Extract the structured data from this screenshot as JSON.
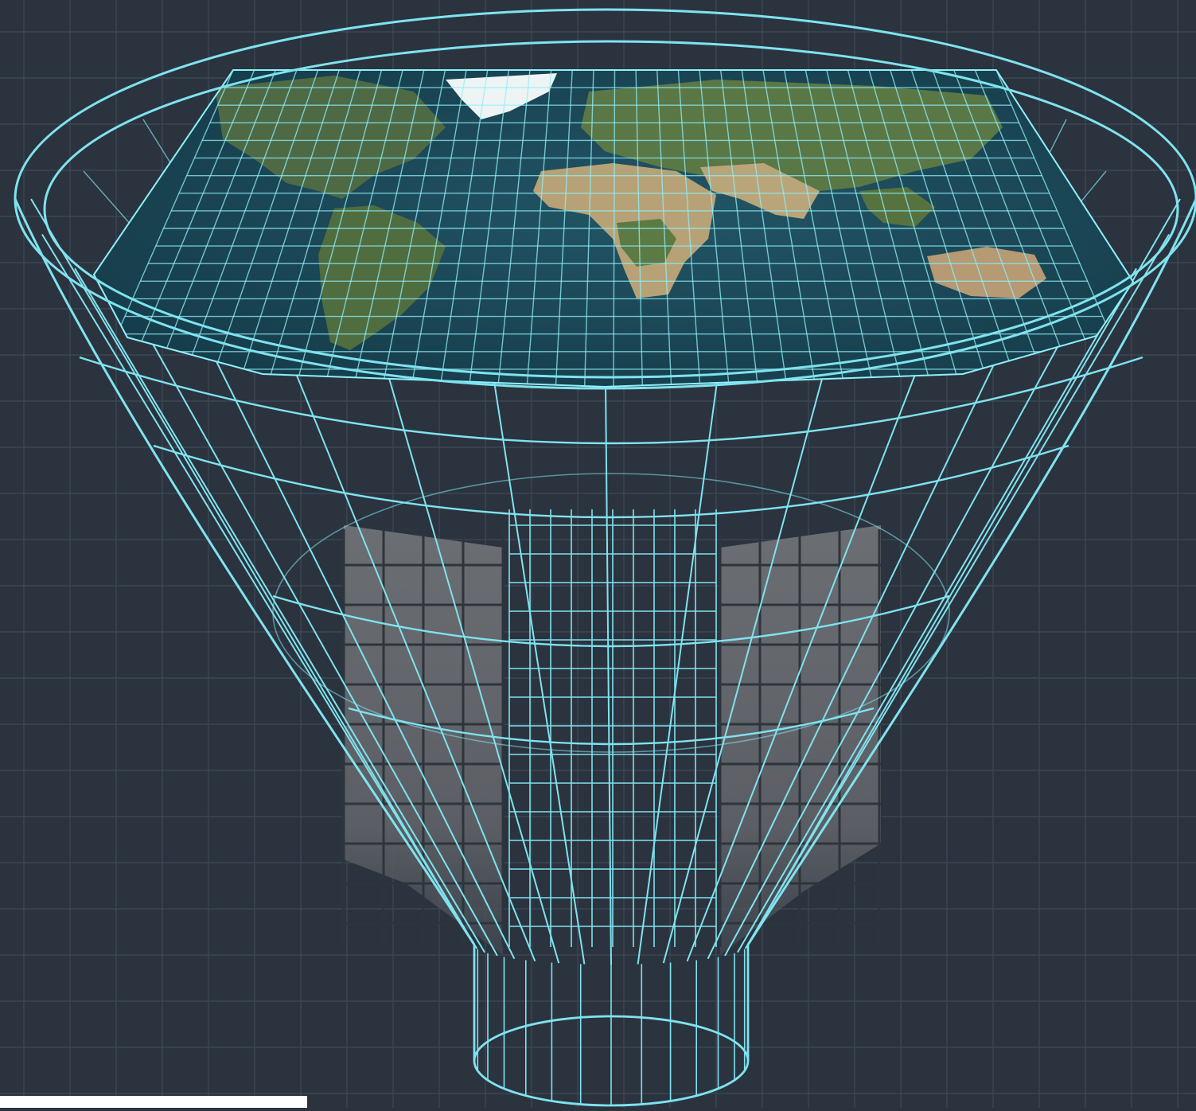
{
  "title": "",
  "palette": {
    "background": "#2b333e",
    "blueprint_grid": "#3d4a57",
    "wireframe": "#7fe3ef",
    "ocean": "#1c4a5a",
    "land": "#4f6b43",
    "desert": "#b9a57a",
    "ice": "#eef4f4",
    "screen_panel": "#6a6d72"
  },
  "icons": [
    "earth-map",
    "funnel-wireframe",
    "screen-panel"
  ]
}
